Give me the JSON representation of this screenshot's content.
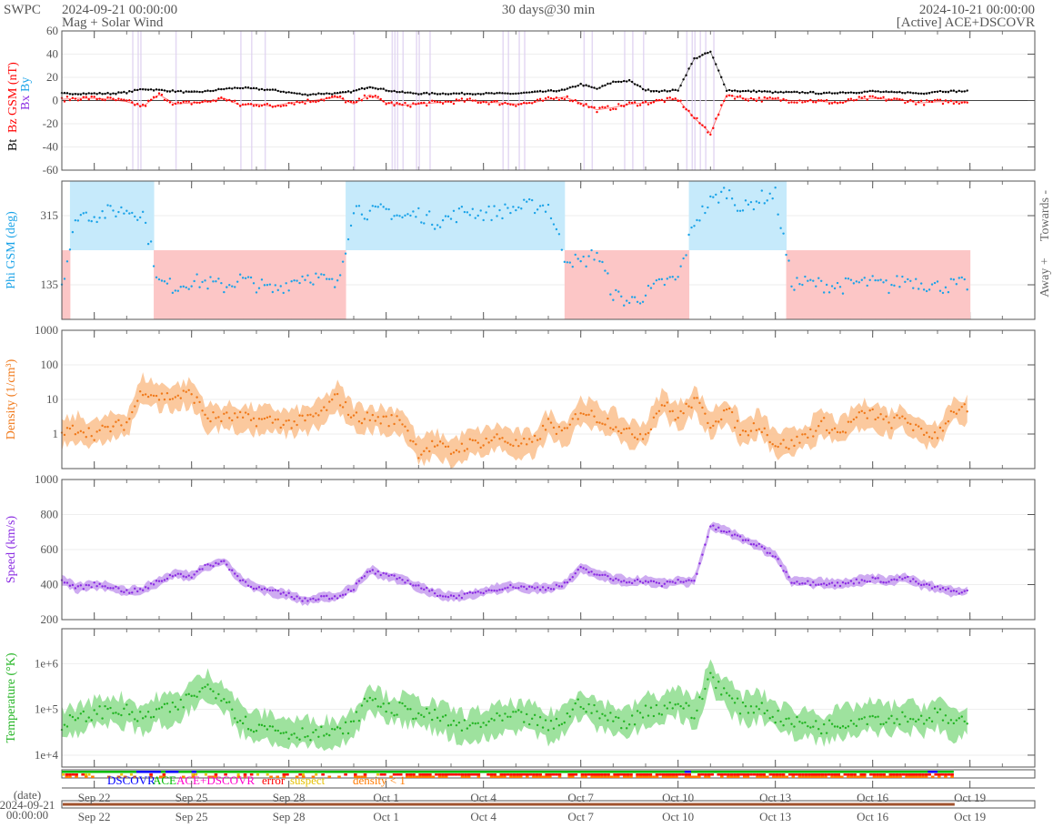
{
  "header": {
    "brand": "SWPC",
    "start": "2024-09-21 00:00:00",
    "subtitle": "Mag + Solar Wind",
    "span": "30 days@30 min",
    "end": "2024-10-21 00:00:00",
    "source": "[Active] ACE+DSCOVR"
  },
  "labels": {
    "bt": "Bt",
    "bz": "Bz GSM (nT)",
    "bx": "Bx",
    "by": "By",
    "phi": "Phi GSM (deg)",
    "towards": "Towards -",
    "away": "Away +",
    "density": "Density (1/cm³)",
    "speed": "Speed (km/s)",
    "temperature": "Temperature (°K)"
  },
  "legend": {
    "dscovr": "DSCOVR",
    "ace": "ACE",
    "both": "ACE+DSCOVR",
    "error": "error",
    "suspect": "suspect",
    "density_lt1": "density < 1"
  },
  "date_axis": {
    "label": "(date)",
    "date": "2024-09-21",
    "time": "00:00:00"
  },
  "colors": {
    "bt": "#000000",
    "bz": "#ff0000",
    "bx": "#8a2be2",
    "by": "#1aa3e8",
    "phi_dot": "#1aa3e8",
    "towards_fill": "#c6eafb",
    "away_fill": "#fcc6c6",
    "density": "#f07818",
    "density_fill": "#fbc393",
    "speed": "#8a2be2",
    "speed_fill": "#c9a2ef",
    "temperature": "#22b422",
    "temperature_fill": "#93df93",
    "dscovr": "#0000ff",
    "ace": "#00bb00",
    "both": "#ff00cc",
    "error": "#ff0000",
    "suspect": "#e6c000",
    "density_lt1": "#ff7a00"
  },
  "chart_data": {
    "type": "scatter",
    "x_start": "2024-09-21 00:00:00",
    "x_range_days": [
      0,
      30
    ],
    "time_step_days": 0.5,
    "x_ticks": [
      {
        "day": 1,
        "label": "Sep 22"
      },
      {
        "day": 4,
        "label": "Sep 25"
      },
      {
        "day": 7,
        "label": "Sep 28"
      },
      {
        "day": 10,
        "label": "Oct 1"
      },
      {
        "day": 13,
        "label": "Oct 4"
      },
      {
        "day": 16,
        "label": "Oct 7"
      },
      {
        "day": 19,
        "label": "Oct 10"
      },
      {
        "day": 22,
        "label": "Oct 13"
      },
      {
        "day": 25,
        "label": "Oct 16"
      },
      {
        "day": 28,
        "label": "Oct 19"
      }
    ],
    "panels": [
      {
        "key": "mag",
        "ylabel": "Bt Bz GSM (nT)",
        "ylim": [
          -60,
          60
        ],
        "scale": "linear",
        "ticks": [
          {
            "v": -60,
            "label": "-60"
          },
          {
            "v": -40,
            "label": "-40"
          },
          {
            "v": -20,
            "label": "-20"
          },
          {
            "v": 0,
            "label": "0"
          },
          {
            "v": 20,
            "label": "20"
          },
          {
            "v": 40,
            "label": "40"
          },
          {
            "v": 60,
            "label": "60"
          }
        ]
      },
      {
        "key": "phi",
        "ylabel": "Phi GSM (deg)",
        "ylim": [
          45,
          405
        ],
        "scale": "linear",
        "ticks": [
          {
            "v": 135,
            "label": "135"
          },
          {
            "v": 315,
            "label": "315"
          }
        ]
      },
      {
        "key": "density",
        "ylabel": "Density (1/cm³)",
        "ylim": [
          0.1,
          1000
        ],
        "scale": "log",
        "ticks": [
          {
            "v": 1,
            "label": "1"
          },
          {
            "v": 10,
            "label": "10"
          },
          {
            "v": 100,
            "label": "100"
          },
          {
            "v": 1000,
            "label": "1000"
          }
        ]
      },
      {
        "key": "speed",
        "ylabel": "Speed (km/s)",
        "ylim": [
          200,
          1000
        ],
        "scale": "linear",
        "ticks": [
          {
            "v": 200,
            "label": "200"
          },
          {
            "v": 400,
            "label": "400"
          },
          {
            "v": 600,
            "label": "600"
          },
          {
            "v": 800,
            "label": "800"
          },
          {
            "v": 1000,
            "label": "1000"
          }
        ]
      },
      {
        "key": "temperature",
        "ylabel": "Temperature (°K)",
        "ylim": [
          5500,
          5800000
        ],
        "scale": "log",
        "ticks": [
          {
            "v": 10000,
            "label": "1e+4"
          },
          {
            "v": 100000,
            "label": "1e+5"
          },
          {
            "v": 1000000,
            "label": "1e+6"
          }
        ]
      }
    ],
    "series": [
      {
        "name": "Bt",
        "panel": "mag",
        "values": [
          6,
          6,
          6,
          6,
          7,
          10,
          9,
          8,
          7,
          8,
          10,
          11,
          10,
          9,
          7,
          5,
          6,
          6,
          8,
          12,
          9,
          7,
          6,
          6,
          6,
          6,
          6,
          6,
          6,
          7,
          8,
          9,
          14,
          10,
          16,
          17,
          9,
          8,
          9,
          36,
          42,
          9,
          8,
          8,
          7,
          7,
          7,
          6,
          7,
          7,
          8,
          7,
          7,
          6,
          8,
          8
        ]
      },
      {
        "name": "Bz",
        "panel": "mag",
        "values": [
          1,
          2,
          2,
          1,
          -1,
          -5,
          5,
          -3,
          -2,
          -1,
          2,
          -4,
          -3,
          -5,
          -2,
          -1,
          1,
          3,
          -3,
          5,
          -2,
          -4,
          -3,
          -2,
          -1,
          0,
          -1,
          -2,
          -3,
          -2,
          1,
          3,
          -2,
          -8,
          -6,
          -3,
          -2,
          0,
          1,
          -15,
          -28,
          5,
          2,
          1,
          1,
          0,
          0,
          -1,
          -2,
          1,
          2,
          1,
          0,
          -2,
          -1,
          -1
        ]
      },
      {
        "name": "Phi",
        "panel": "phi",
        "values": [
          140,
          320,
          315,
          325,
          330,
          320,
          140,
          130,
          145,
          140,
          130,
          150,
          135,
          120,
          140,
          160,
          150,
          130,
          340,
          320,
          330,
          310,
          320,
          300,
          310,
          330,
          320,
          325,
          335,
          340,
          340,
          210,
          190,
          220,
          110,
          90,
          110,
          140,
          150,
          300,
          350,
          380,
          330,
          360,
          370,
          140,
          140,
          135,
          130,
          140,
          140,
          130,
          150,
          140,
          130,
          135
        ]
      },
      {
        "name": "Density",
        "panel": "density",
        "values": [
          1,
          1.5,
          1,
          1.5,
          2,
          20,
          12,
          12,
          15,
          3,
          3,
          3,
          2.5,
          2.5,
          2,
          2.5,
          4,
          12,
          3,
          3,
          2.5,
          2.5,
          0.3,
          0.5,
          0.3,
          0.5,
          0.6,
          0.8,
          0.5,
          0.5,
          2,
          1,
          5,
          3,
          2,
          1,
          1,
          8,
          3,
          10,
          2,
          5,
          1,
          2,
          0.5,
          0.5,
          1,
          2,
          1,
          3,
          4,
          2,
          3,
          1,
          1,
          5
        ]
      },
      {
        "name": "Speed",
        "panel": "speed",
        "values": [
          420,
          380,
          400,
          390,
          360,
          370,
          420,
          460,
          450,
          510,
          530,
          430,
          380,
          360,
          340,
          310,
          330,
          330,
          380,
          480,
          450,
          430,
          390,
          350,
          330,
          340,
          360,
          380,
          390,
          380,
          380,
          400,
          490,
          460,
          430,
          420,
          420,
          400,
          420,
          420,
          730,
          700,
          660,
          620,
          560,
          420,
          410,
          410,
          400,
          420,
          430,
          420,
          440,
          400,
          380,
          360
        ]
      },
      {
        "name": "Temperature",
        "panel": "temperature",
        "values": [
          50000,
          60000,
          80000,
          100000,
          90000,
          60000,
          100000,
          100000,
          200000,
          300000,
          200000,
          60000,
          40000,
          40000,
          30000,
          30000,
          30000,
          30000,
          50000,
          200000,
          100000,
          100000,
          80000,
          70000,
          50000,
          40000,
          50000,
          60000,
          70000,
          60000,
          40000,
          60000,
          150000,
          80000,
          60000,
          50000,
          100000,
          100000,
          150000,
          70000,
          600000,
          200000,
          100000,
          120000,
          70000,
          50000,
          50000,
          40000,
          50000,
          60000,
          70000,
          60000,
          70000,
          60000,
          80000,
          50000
        ]
      }
    ]
  }
}
